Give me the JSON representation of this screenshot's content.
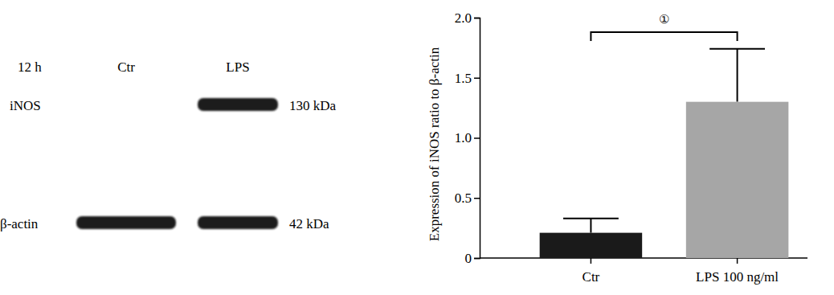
{
  "chart_data": {
    "type": "bar",
    "ylabel": "Expression of iNOS ratio to β-actin",
    "categories": [
      "Ctr",
      "LPS 100 ng/ml"
    ],
    "values": [
      0.21,
      1.3
    ],
    "errors": [
      0.12,
      0.44
    ],
    "colors": [
      "#1a1a1a",
      "#a6a6a6"
    ],
    "ylim": [
      0,
      2.0
    ],
    "yticks": [
      0,
      0.5,
      {
        "value": 1.0,
        "label": "1.0"
      },
      1.5,
      {
        "value": 2.0,
        "label": "2.0"
      }
    ],
    "annotation": "①"
  },
  "blot": {
    "time": "12 h",
    "lanes": [
      "Ctr",
      "LPS"
    ],
    "rows": [
      {
        "label": "iNOS",
        "size": "130 kDa",
        "bands": [
          false,
          true
        ]
      },
      {
        "label": "β-actin",
        "size": "42 kDa",
        "bands": [
          true,
          true
        ]
      }
    ]
  }
}
